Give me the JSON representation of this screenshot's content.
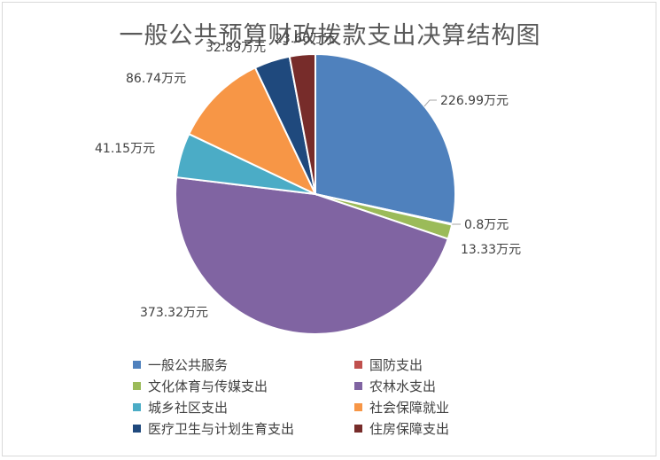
{
  "chart_data": {
    "type": "pie",
    "title": "一般公共预算财政拨款支出决算结构图",
    "unit": "万元",
    "legend_position": "bottom",
    "series": [
      {
        "name": "一般公共服务",
        "value": 226.99,
        "label": "226.99万元",
        "color": "#4f81bd"
      },
      {
        "name": "国防支出",
        "value": 0.8,
        "label": "0.8万元",
        "color": "#c0504d"
      },
      {
        "name": "文化体育与传媒支出",
        "value": 13.33,
        "label": "13.33万元",
        "color": "#9bbb59"
      },
      {
        "name": "农林水支出",
        "value": 373.32,
        "label": "373.32万元",
        "color": "#8064a2"
      },
      {
        "name": "城乡社区支出",
        "value": 41.15,
        "label": "41.15万元",
        "color": "#4bacc6"
      },
      {
        "name": "社会保障就业",
        "value": 86.74,
        "label": "86.74万元",
        "color": "#f79646"
      },
      {
        "name": "医疗卫生与计划生育支出",
        "value": 32.89,
        "label": "32.89万元",
        "color": "#1f497d"
      },
      {
        "name": "住房保障支出",
        "value": 23.66,
        "label": "23.66万元",
        "color": "#772c2a"
      }
    ]
  }
}
